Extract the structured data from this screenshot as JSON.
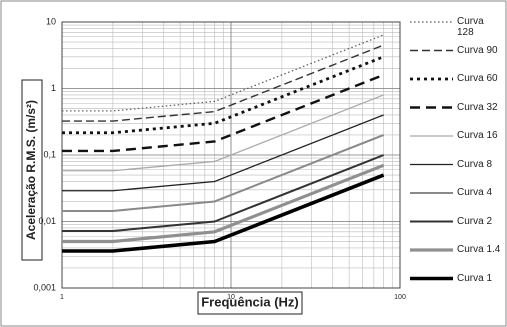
{
  "chart_data": {
    "type": "line",
    "x_label": "Frequência (Hz)",
    "y_label": "Aceleração R.M.S. (m/s²)",
    "x": [
      1,
      2,
      8,
      80
    ],
    "log_x": true,
    "log_y": true,
    "grid": true,
    "minor_grid": true,
    "xlim": [
      1,
      100
    ],
    "xticks": [
      1,
      10,
      100
    ],
    "ylim": [
      0.001,
      10
    ],
    "yticks": [
      {
        "value": 0.001,
        "label": "0,001"
      },
      {
        "value": 0.01,
        "label": "0,01"
      },
      {
        "value": 0.1,
        "label": "0,1"
      },
      1,
      10
    ],
    "series": [
      {
        "name": "Curva 128",
        "color": "#555555",
        "style": "dotted",
        "values": [
          0.46,
          0.46,
          0.64,
          6.4
        ]
      },
      {
        "name": "Curva 90",
        "color": "#333333",
        "style": "dashed",
        "values": [
          0.324,
          0.324,
          0.45,
          4.5
        ]
      },
      {
        "name": "Curva 60",
        "color": "#111111",
        "style": "dotted-bold",
        "values": [
          0.216,
          0.216,
          0.3,
          3
        ]
      },
      {
        "name": "Curva 32",
        "color": "#111111",
        "style": "dashed-bold",
        "values": [
          0.115,
          0.115,
          0.16,
          1.6
        ]
      },
      {
        "name": "Curva 16",
        "color": "#aaaaaa",
        "style": "thin",
        "values": [
          0.058,
          0.058,
          0.08,
          0.8
        ]
      },
      {
        "name": "Curva 8",
        "color": "#222222",
        "style": "thin",
        "values": [
          0.029,
          0.029,
          0.04,
          0.4
        ]
      },
      {
        "name": "Curva 4",
        "color": "#8a8a8a",
        "style": "medium",
        "values": [
          0.0144,
          0.0144,
          0.02,
          0.2
        ]
      },
      {
        "name": "Curva 2",
        "color": "#333333",
        "style": "medium",
        "values": [
          0.0072,
          0.0072,
          0.01,
          0.1
        ]
      },
      {
        "name": "Curva 1.4",
        "color": "#909090",
        "style": "bold",
        "values": [
          0.005,
          0.005,
          0.007,
          0.07
        ]
      },
      {
        "name": "Curva 1",
        "color": "#000000",
        "style": "extra-bold",
        "values": [
          0.0036,
          0.0036,
          0.005,
          0.05
        ]
      }
    ]
  }
}
